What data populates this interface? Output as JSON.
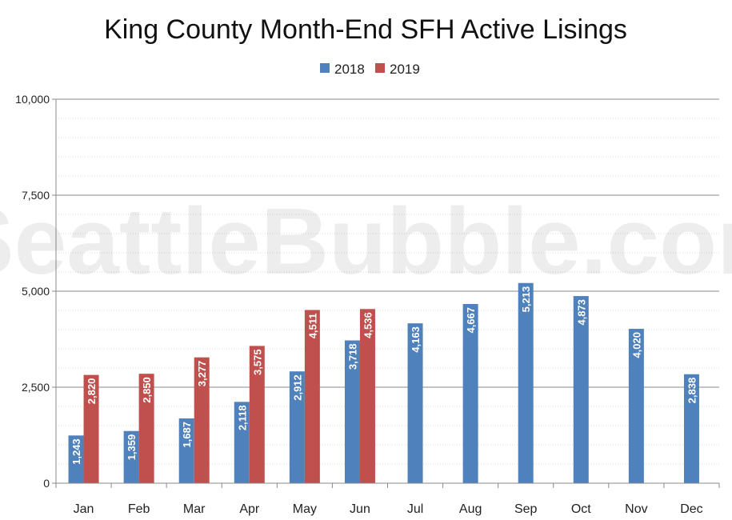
{
  "chart_data": {
    "type": "bar",
    "title": "King County Month-End SFH Active Lisings",
    "watermark": "SeattleBubble.com",
    "categories": [
      "Jan",
      "Feb",
      "Mar",
      "Apr",
      "May",
      "Jun",
      "Jul",
      "Aug",
      "Sep",
      "Oct",
      "Nov",
      "Dec"
    ],
    "series": [
      {
        "name": "2018",
        "color": "#4f81bd",
        "values": [
          1243,
          1359,
          1687,
          2118,
          2912,
          3718,
          4163,
          4667,
          5213,
          4873,
          4020,
          2838
        ]
      },
      {
        "name": "2019",
        "color": "#c0504d",
        "values": [
          2820,
          2850,
          3277,
          3575,
          4511,
          4536,
          null,
          null,
          null,
          null,
          null,
          null
        ]
      }
    ],
    "value_labels": {
      "2018": [
        "1,243",
        "1,359",
        "1,687",
        "2,118",
        "2,912",
        "3,718",
        "4,163",
        "4,667",
        "5,213",
        "4,873",
        "4,020",
        "2,838"
      ],
      "2019": [
        "2,820",
        "2,850",
        "3,277",
        "3,575",
        "4,511",
        "4,536"
      ]
    },
    "ylim": [
      0,
      10000
    ],
    "yticks": [
      0,
      2500,
      5000,
      7500,
      10000
    ],
    "ytick_labels": [
      "0",
      "2,500",
      "5,000",
      "7,500",
      "10,000"
    ],
    "legend_position": "top-center",
    "grid": true
  }
}
